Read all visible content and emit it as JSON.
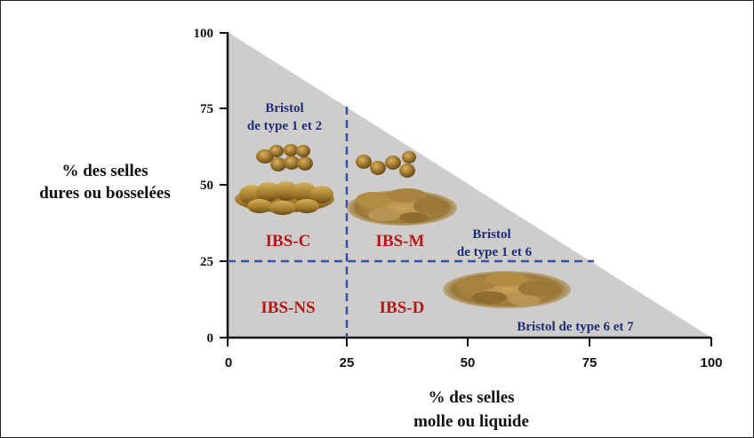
{
  "y_axis": {
    "label_line1": "% des selles",
    "label_line2": "dures ou bosselées",
    "ticks": [
      "100",
      "75",
      "50",
      "25",
      "0"
    ]
  },
  "x_axis": {
    "label_line1": "% des selles",
    "label_line2": "molle ou liquide",
    "ticks": [
      "0",
      "25",
      "50",
      "75",
      "100"
    ]
  },
  "regions": {
    "ibs_c": "IBS-C",
    "ibs_m": "IBS-M",
    "ibs_ns": "IBS-NS",
    "ibs_d": "IBS-D"
  },
  "bristol_labels": {
    "type_1_2_line1": "Bristol",
    "type_1_2_line2": "de type 1 et 2",
    "type_1_6_line1": "Bristol",
    "type_1_6_line2": "de type 1 et 6",
    "type_6_7": "Bristol de type 6 et 7"
  },
  "colors": {
    "triangle_fill": "#cfcdcb",
    "dashed_line": "#3451a8",
    "region_label": "#b01a1a",
    "bristol_label": "#1e2f7a",
    "stool": "#8a6a28"
  }
}
